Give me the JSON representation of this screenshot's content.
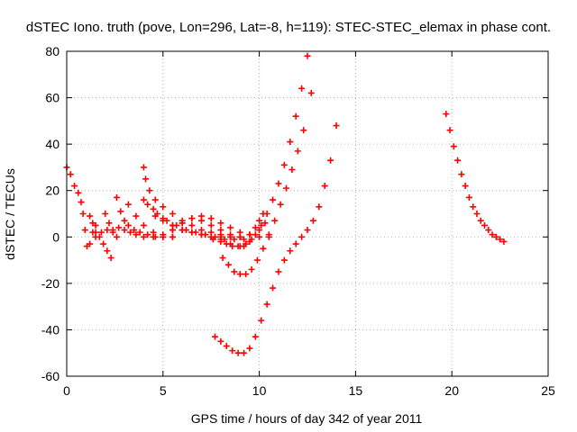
{
  "chart_data": {
    "type": "scatter",
    "title": "dSTEC Iono. truth (pove, Lon=296, Lat=-8, h=119): STEC-STEC_elemax in phase cont.",
    "xlabel": "GPS time / hours of day 342 of year 2011",
    "ylabel": "dSTEC  / TECUs",
    "xlim": [
      0,
      25
    ],
    "ylim": [
      -60,
      80
    ],
    "xticks": [
      0,
      5,
      10,
      15,
      20,
      25
    ],
    "yticks": [
      -60,
      -40,
      -20,
      0,
      20,
      40,
      60,
      80
    ],
    "xtick_labels": [
      "0",
      "5",
      "10",
      "15",
      "20",
      "25"
    ],
    "ytick_labels": [
      "-60",
      "-40",
      "-20",
      "0",
      "20",
      "40",
      "60",
      "80"
    ],
    "grid": true,
    "legend": "none",
    "marker": "+",
    "color": "#ff0000",
    "series": [
      {
        "x": [
          0.0,
          0.2,
          0.4,
          0.6,
          0.75,
          0.85,
          0.95,
          1.05,
          1.2,
          1.35,
          1.5
        ],
        "y": [
          30,
          27,
          22,
          19,
          15,
          10,
          3,
          -4,
          -3,
          2,
          5
        ]
      },
      {
        "x": [
          1.2,
          1.35,
          1.5,
          1.7,
          1.9,
          2.1,
          2.3
        ],
        "y": [
          9,
          6,
          2,
          0,
          -3,
          -6,
          -9
        ]
      },
      {
        "x": [
          1.5,
          1.8,
          2.1,
          2.4,
          2.7,
          3.0,
          3.3,
          3.6,
          4.0,
          4.5,
          5.0,
          5.5
        ],
        "y": [
          0,
          2,
          3,
          2,
          4,
          3,
          2,
          1,
          0,
          0,
          0,
          0
        ]
      },
      {
        "x": [
          2.0,
          2.2,
          2.4,
          2.6
        ],
        "y": [
          10,
          6,
          3,
          0
        ]
      },
      {
        "x": [
          2.6,
          2.8,
          3.0,
          3.2,
          3.5,
          3.8,
          4.2,
          4.6,
          5.0
        ],
        "y": [
          17,
          11,
          7,
          5,
          3,
          2,
          1,
          0,
          0
        ]
      },
      {
        "x": [
          3.2,
          3.6,
          4.0,
          4.5,
          5.0,
          5.5
        ],
        "y": [
          14,
          9,
          5,
          2,
          1,
          0
        ]
      },
      {
        "x": [
          4.0,
          4.1,
          4.3,
          4.6,
          5.0,
          5.5,
          6.0,
          6.5,
          7.0,
          7.5,
          8.0,
          8.5,
          9.0
        ],
        "y": [
          30,
          25,
          20,
          16,
          13,
          10,
          7,
          5,
          3,
          2,
          1,
          0,
          0
        ]
      },
      {
        "x": [
          4.0,
          4.5,
          5.0,
          5.5,
          6.0,
          6.5,
          7.0,
          7.5,
          8.0
        ],
        "y": [
          16,
          12,
          8,
          5,
          3,
          2,
          1,
          0,
          0
        ]
      },
      {
        "x": [
          4.2,
          4.7,
          5.2,
          5.7,
          6.2,
          6.7,
          7.2,
          7.7,
          8.2,
          8.7,
          9.2
        ],
        "y": [
          14,
          10,
          7,
          5,
          3,
          2,
          1,
          0,
          -1,
          -1,
          -1
        ]
      },
      {
        "x": [
          4.6,
          5.0,
          5.5,
          6.0,
          6.5,
          7.0,
          7.5,
          8.0,
          8.5,
          9.0
        ],
        "y": [
          9,
          7,
          5,
          3,
          2,
          1,
          0,
          0,
          0,
          0
        ]
      },
      {
        "x": [
          5.0,
          5.5,
          6.0,
          6.5,
          7.0
        ],
        "y": [
          0,
          3,
          6,
          8,
          9
        ]
      },
      {
        "x": [
          5.5,
          6.0,
          6.5,
          7.0,
          7.5,
          8.0
        ],
        "y": [
          3,
          6,
          8,
          7,
          5,
          3
        ]
      },
      {
        "x": [
          7.5,
          8.0,
          8.5,
          9.0,
          9.5,
          10.0,
          10.5
        ],
        "y": [
          8,
          6,
          4,
          2,
          1,
          0,
          0
        ]
      },
      {
        "x": [
          8.0,
          8.5,
          9.0,
          9.3,
          9.6,
          10.0,
          10.3
        ],
        "y": [
          -1,
          -3,
          -4,
          -3,
          -1,
          3,
          6
        ]
      },
      {
        "x": [
          8.5,
          9.0,
          9.5,
          9.8,
          10.0,
          10.2
        ],
        "y": [
          1,
          0,
          1,
          4,
          7,
          10
        ]
      },
      {
        "x": [
          7.6,
          8.0,
          8.3,
          8.6,
          8.9,
          9.2,
          9.5,
          9.8,
          10.1,
          10.4,
          10.7,
          11.0,
          11.3,
          11.6,
          11.9,
          12.2,
          12.5
        ],
        "y": [
          -1,
          -2,
          -3,
          -4,
          -4,
          -4,
          -2,
          1,
          5,
          10,
          16,
          23,
          31,
          41,
          52,
          64,
          78
        ]
      },
      {
        "x": [
          8.1,
          8.4,
          8.7,
          9.0,
          9.3,
          9.6,
          9.9,
          10.2,
          10.5,
          10.8,
          11.1,
          11.4,
          11.7,
          12.0,
          12.3,
          12.7
        ],
        "y": [
          -9,
          -12,
          -15,
          -16,
          -16,
          -14,
          -10,
          -5,
          1,
          7,
          14,
          21,
          29,
          37,
          46,
          62
        ]
      },
      {
        "x": [
          7.7,
          8.0,
          8.3,
          8.6,
          8.9,
          9.2,
          9.5,
          9.8,
          10.1,
          10.4,
          10.7,
          11.0,
          11.3,
          11.6,
          11.9,
          12.2,
          12.5,
          12.8,
          13.1,
          13.4,
          13.7,
          14.0
        ],
        "y": [
          -43,
          -45,
          -47,
          -49,
          -50,
          -50,
          -48,
          -43,
          -36,
          -29,
          -22,
          -15,
          -10,
          -6,
          -3,
          0,
          3,
          7,
          13,
          22,
          33,
          48
        ]
      },
      {
        "x": [
          19.7,
          19.9,
          20.1,
          20.3,
          20.5,
          20.7,
          20.9,
          21.1,
          21.3,
          21.5,
          21.7,
          21.9,
          22.1,
          22.3,
          22.5,
          22.7
        ],
        "y": [
          53,
          46,
          39,
          33,
          27,
          22,
          17,
          13,
          10,
          7,
          5,
          3,
          1,
          0,
          -1,
          -2
        ]
      }
    ]
  }
}
